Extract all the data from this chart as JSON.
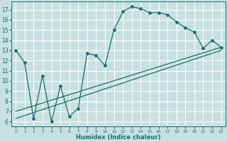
{
  "xlabel": "Humidex (Indice chaleur)",
  "bg_color": "#c8e0e0",
  "grid_color": "#ffffff",
  "line_color": "#1a6e6e",
  "xlim": [
    -0.5,
    23.5
  ],
  "ylim": [
    5.5,
    17.8
  ],
  "yticks": [
    6,
    7,
    8,
    9,
    10,
    11,
    12,
    13,
    14,
    15,
    16,
    17
  ],
  "xticks": [
    0,
    1,
    2,
    3,
    4,
    5,
    6,
    7,
    8,
    9,
    10,
    11,
    12,
    13,
    14,
    15,
    16,
    17,
    18,
    19,
    20,
    21,
    22,
    23
  ],
  "main_x": [
    0,
    1,
    2,
    3,
    4,
    5,
    6,
    7,
    8,
    9,
    10,
    11,
    12,
    13,
    14,
    15,
    16,
    17,
    18,
    19,
    20,
    21,
    22,
    23
  ],
  "main_y": [
    13.0,
    11.8,
    6.3,
    10.5,
    6.0,
    9.5,
    6.5,
    7.3,
    12.7,
    12.5,
    11.5,
    15.0,
    16.8,
    17.3,
    17.1,
    16.7,
    16.7,
    16.5,
    15.8,
    15.2,
    14.8,
    13.2,
    14.0,
    13.3
  ],
  "trend1_x": [
    0,
    23
  ],
  "trend1_y": [
    7.0,
    13.3
  ],
  "trend2_x": [
    0,
    23
  ],
  "trend2_y": [
    6.3,
    13.0
  ]
}
